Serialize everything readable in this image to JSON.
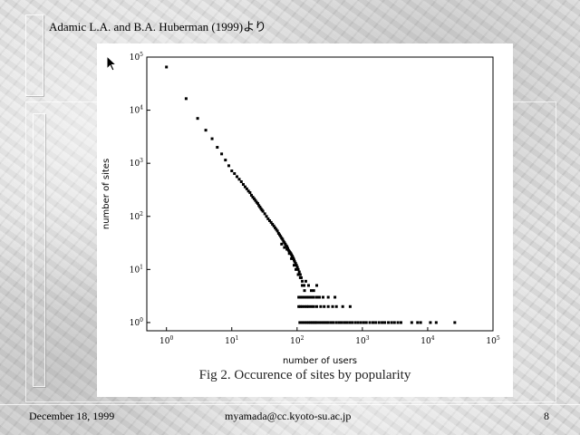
{
  "slide": {
    "attribution": "Adamic L.A. and B.A. Huberman (1999)より",
    "caption": "Fig 2.  Occurence of sites by popularity",
    "footer": {
      "date": "December 18, 1999",
      "email": "myamada@cc.kyoto-su.ac.jp",
      "page": "8"
    }
  },
  "chart_data": {
    "type": "scatter",
    "xlabel": "number of users",
    "ylabel": "number of sites",
    "x_scale": "log",
    "y_scale": "log",
    "xlim": [
      0.5,
      100000
    ],
    "ylim": [
      0.7,
      100000
    ],
    "x_ticks": [
      {
        "value": 1,
        "base": "10",
        "exp": "0"
      },
      {
        "value": 10,
        "base": "10",
        "exp": "1"
      },
      {
        "value": 100,
        "base": "10",
        "exp": "2"
      },
      {
        "value": 1000,
        "base": "10",
        "exp": "3"
      },
      {
        "value": 10000,
        "base": "10",
        "exp": "4"
      },
      {
        "value": 100000,
        "base": "10",
        "exp": "5"
      }
    ],
    "y_ticks": [
      {
        "value": 1,
        "base": "10",
        "exp": "0"
      },
      {
        "value": 10,
        "base": "10",
        "exp": "1"
      },
      {
        "value": 100,
        "base": "10",
        "exp": "2"
      },
      {
        "value": 1000,
        "base": "10",
        "exp": "3"
      },
      {
        "value": 10000,
        "base": "10",
        "exp": "4"
      },
      {
        "value": 100000,
        "base": "10",
        "exp": "5"
      }
    ],
    "grid": false,
    "points": [
      [
        1,
        65000
      ],
      [
        2,
        16500
      ],
      [
        3,
        7000
      ],
      [
        4,
        4200
      ],
      [
        5,
        2900
      ],
      [
        6,
        2000
      ],
      [
        7,
        1500
      ],
      [
        8,
        1150
      ],
      [
        9,
        900
      ],
      [
        10,
        720
      ],
      [
        11,
        640
      ],
      [
        12,
        560
      ],
      [
        13,
        500
      ],
      [
        14,
        450
      ],
      [
        15,
        400
      ],
      [
        16,
        360
      ],
      [
        17,
        330
      ],
      [
        18,
        300
      ],
      [
        19,
        280
      ],
      [
        20,
        250
      ],
      [
        21,
        230
      ],
      [
        22,
        215
      ],
      [
        23,
        200
      ],
      [
        24,
        185
      ],
      [
        25,
        175
      ],
      [
        26,
        160
      ],
      [
        27,
        150
      ],
      [
        28,
        140
      ],
      [
        29,
        132
      ],
      [
        30,
        125
      ],
      [
        32,
        112
      ],
      [
        34,
        100
      ],
      [
        36,
        90
      ],
      [
        38,
        83
      ],
      [
        40,
        77
      ],
      [
        42,
        71
      ],
      [
        44,
        66
      ],
      [
        46,
        61
      ],
      [
        48,
        57
      ],
      [
        50,
        53
      ],
      [
        52,
        48
      ],
      [
        54,
        45
      ],
      [
        56,
        42
      ],
      [
        58,
        39
      ],
      [
        60,
        37
      ],
      [
        62,
        34
      ],
      [
        64,
        32
      ],
      [
        66,
        30
      ],
      [
        68,
        28
      ],
      [
        70,
        27
      ],
      [
        72,
        25
      ],
      [
        74,
        23
      ],
      [
        76,
        22
      ],
      [
        78,
        21
      ],
      [
        80,
        20
      ],
      [
        82,
        19
      ],
      [
        84,
        18
      ],
      [
        86,
        17
      ],
      [
        88,
        16
      ],
      [
        90,
        15
      ],
      [
        92,
        14
      ],
      [
        95,
        13
      ],
      [
        98,
        12
      ],
      [
        101,
        11
      ],
      [
        104,
        10
      ],
      [
        108,
        9
      ],
      [
        112,
        8
      ],
      [
        116,
        7
      ],
      [
        120,
        6
      ],
      [
        125,
        5
      ],
      [
        130,
        4
      ],
      [
        58,
        30
      ],
      [
        64,
        26
      ],
      [
        70,
        24
      ],
      [
        76,
        20
      ],
      [
        82,
        16
      ],
      [
        90,
        12
      ],
      [
        96,
        10
      ],
      [
        104,
        8
      ],
      [
        112,
        7
      ],
      [
        120,
        5
      ],
      [
        128,
        5
      ],
      [
        136,
        6
      ],
      [
        150,
        5
      ],
      [
        165,
        4
      ],
      [
        180,
        4
      ],
      [
        200,
        5
      ],
      [
        220,
        3
      ],
      [
        106,
        3
      ],
      [
        112,
        3
      ],
      [
        120,
        3
      ],
      [
        130,
        3
      ],
      [
        140,
        3
      ],
      [
        150,
        3
      ],
      [
        165,
        3
      ],
      [
        180,
        3
      ],
      [
        200,
        3
      ],
      [
        250,
        3
      ],
      [
        300,
        3
      ],
      [
        380,
        3
      ],
      [
        106,
        2
      ],
      [
        112,
        2
      ],
      [
        120,
        2
      ],
      [
        130,
        2
      ],
      [
        140,
        2
      ],
      [
        150,
        2
      ],
      [
        165,
        2
      ],
      [
        180,
        2
      ],
      [
        200,
        2
      ],
      [
        230,
        2
      ],
      [
        260,
        2
      ],
      [
        300,
        2
      ],
      [
        350,
        2
      ],
      [
        400,
        2
      ],
      [
        500,
        2
      ],
      [
        650,
        2
      ],
      [
        110,
        1
      ],
      [
        120,
        1
      ],
      [
        130,
        1
      ],
      [
        140,
        1
      ],
      [
        150,
        1
      ],
      [
        160,
        1
      ],
      [
        170,
        1
      ],
      [
        180,
        1
      ],
      [
        190,
        1
      ],
      [
        200,
        1
      ],
      [
        220,
        1
      ],
      [
        240,
        1
      ],
      [
        260,
        1
      ],
      [
        280,
        1
      ],
      [
        300,
        1
      ],
      [
        330,
        1
      ],
      [
        360,
        1
      ],
      [
        400,
        1
      ],
      [
        440,
        1
      ],
      [
        480,
        1
      ],
      [
        530,
        1
      ],
      [
        580,
        1
      ],
      [
        640,
        1
      ],
      [
        700,
        1
      ],
      [
        780,
        1
      ],
      [
        860,
        1
      ],
      [
        950,
        1
      ],
      [
        1050,
        1
      ],
      [
        1150,
        1
      ],
      [
        1300,
        1
      ],
      [
        1450,
        1
      ],
      [
        1600,
        1
      ],
      [
        1800,
        1
      ],
      [
        2000,
        1
      ],
      [
        2200,
        1
      ],
      [
        2500,
        1
      ],
      [
        2800,
        1
      ],
      [
        3100,
        1
      ],
      [
        3500,
        1
      ],
      [
        3900,
        1
      ],
      [
        5700,
        1
      ],
      [
        7000,
        1
      ],
      [
        7800,
        1
      ],
      [
        11000,
        1
      ],
      [
        13500,
        1
      ],
      [
        26000,
        1
      ]
    ]
  }
}
